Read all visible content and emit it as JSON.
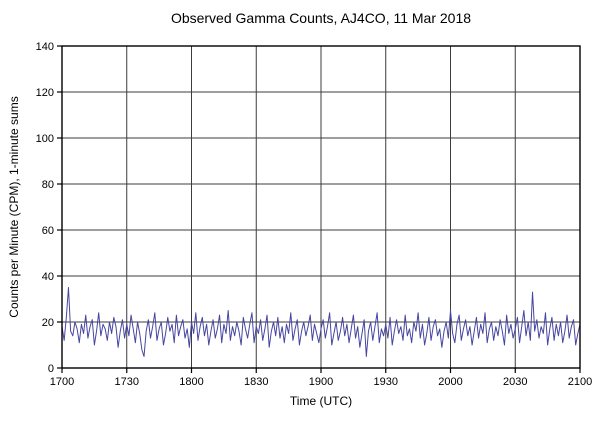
{
  "chart_data": {
    "type": "line",
    "title": "Observed Gamma Counts, AJ4CO, 11 Mar 2018",
    "xlabel": "Time (UTC)",
    "ylabel": "Counts per Minute (CPM), 1-minute sums",
    "ylim": [
      0,
      140
    ],
    "y_ticks": [
      0,
      20,
      40,
      60,
      80,
      100,
      120,
      140
    ],
    "x_minutes_range": [
      0,
      240
    ],
    "x_tick_minutes": [
      0,
      30,
      60,
      90,
      120,
      150,
      180,
      210,
      240
    ],
    "x_tick_labels": [
      "1700",
      "1730",
      "1800",
      "1830",
      "1900",
      "1930",
      "2000",
      "2030",
      "2100"
    ],
    "grid": true,
    "legend": "none",
    "colors": {
      "line": "#4646a0",
      "grid": "#3c3c3c",
      "frame": "#000000"
    },
    "values": [
      18,
      12,
      22,
      35,
      16,
      14,
      20,
      17,
      11,
      19,
      15,
      23,
      13,
      18,
      21,
      10,
      16,
      24,
      14,
      19,
      17,
      12,
      20,
      15,
      22,
      18,
      9,
      16,
      21,
      13,
      19,
      14,
      23,
      17,
      11,
      20,
      15,
      8,
      5,
      16,
      21,
      13,
      18,
      24,
      12,
      17,
      20,
      10,
      15,
      22,
      16,
      19,
      11,
      23,
      14,
      18,
      21,
      13,
      17,
      9,
      20,
      15,
      24,
      12,
      18,
      22,
      14,
      19,
      10,
      16,
      21,
      13,
      17,
      23,
      11,
      19,
      15,
      25,
      12,
      18,
      14,
      20,
      16,
      10,
      22,
      17,
      13,
      19,
      24,
      11,
      18,
      15,
      21,
      12,
      17,
      23,
      9,
      16,
      20,
      14,
      22,
      13,
      18,
      11,
      19,
      15,
      24,
      12,
      17,
      21,
      10,
      16,
      20,
      14,
      18,
      23,
      12,
      19,
      15,
      11,
      17,
      21,
      13,
      18,
      24,
      10,
      15,
      20,
      12,
      16,
      22,
      14,
      19,
      11,
      17,
      23,
      13,
      18,
      9,
      15,
      21,
      5,
      16,
      20,
      12,
      18,
      24,
      11,
      17,
      14,
      19,
      13,
      22,
      10,
      16,
      21,
      15,
      18,
      12,
      23,
      14,
      17,
      11,
      20,
      16,
      24,
      13,
      19,
      10,
      15,
      22,
      12,
      18,
      21,
      14,
      17,
      9,
      16,
      20,
      13,
      25,
      15,
      11,
      19,
      23,
      12,
      17,
      21,
      14,
      18,
      10,
      16,
      22,
      13,
      19,
      15,
      24,
      11,
      17,
      20,
      12,
      18,
      14,
      21,
      16,
      10,
      23,
      15,
      19,
      13,
      17,
      22,
      11,
      18,
      25,
      14,
      20,
      12,
      33,
      16,
      21,
      13,
      18,
      15,
      24,
      10,
      17,
      22,
      12,
      19,
      14,
      20,
      11,
      16,
      23,
      13,
      18,
      21,
      10,
      15,
      19
    ]
  }
}
